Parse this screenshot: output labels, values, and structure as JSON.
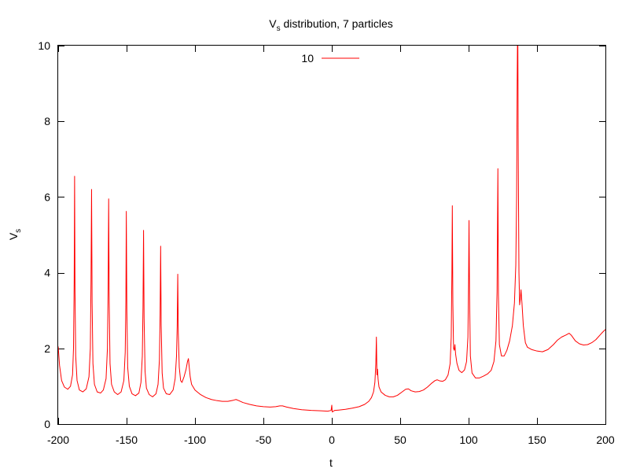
{
  "chart_data": {
    "type": "line",
    "title": {
      "main": "V",
      "sub": "s",
      "rest": " distribution, 7 particles"
    },
    "xlabel": "t",
    "ylabel": {
      "main": "V",
      "sub": "s"
    },
    "xlim": [
      -200,
      200
    ],
    "ylim": [
      0,
      10
    ],
    "xticks": [
      -200,
      -150,
      -100,
      -50,
      0,
      50,
      100,
      150,
      200
    ],
    "xtick_labels": [
      "-200",
      "-150",
      "-100",
      "-50",
      "0",
      "50",
      "100",
      "150",
      "200"
    ],
    "yticks": [
      0,
      2,
      4,
      6,
      8,
      10
    ],
    "ytick_labels": [
      "0",
      "2",
      "4",
      "6",
      "8",
      "10"
    ],
    "grid": false,
    "legend": {
      "placement": "top-center"
    },
    "series": [
      {
        "name": "10",
        "color": "#ff0000",
        "points": [
          [
            -200,
            2.05
          ],
          [
            -199,
            1.55
          ],
          [
            -197.5,
            1.15
          ],
          [
            -195.5,
            0.98
          ],
          [
            -193,
            0.92
          ],
          [
            -191,
            1.0
          ],
          [
            -189.5,
            1.3
          ],
          [
            -188.8,
            2.0
          ],
          [
            -188.3,
            3.8
          ],
          [
            -188.0,
            6.55
          ],
          [
            -187.7,
            3.5
          ],
          [
            -187.2,
            1.8
          ],
          [
            -186.2,
            1.15
          ],
          [
            -184.5,
            0.9
          ],
          [
            -182,
            0.85
          ],
          [
            -179.5,
            0.93
          ],
          [
            -177.5,
            1.25
          ],
          [
            -176.5,
            2.0
          ],
          [
            -176.0,
            3.8
          ],
          [
            -175.6,
            6.2
          ],
          [
            -175.2,
            3.2
          ],
          [
            -174.6,
            1.6
          ],
          [
            -173.5,
            1.05
          ],
          [
            -171.5,
            0.85
          ],
          [
            -169,
            0.82
          ],
          [
            -167,
            0.9
          ],
          [
            -165,
            1.2
          ],
          [
            -164,
            2.0
          ],
          [
            -163.5,
            3.6
          ],
          [
            -163.1,
            5.95
          ],
          [
            -162.7,
            3.2
          ],
          [
            -162.1,
            1.6
          ],
          [
            -161,
            1.05
          ],
          [
            -159,
            0.85
          ],
          [
            -156.5,
            0.78
          ],
          [
            -154,
            0.85
          ],
          [
            -152,
            1.15
          ],
          [
            -151,
            1.9
          ],
          [
            -150.5,
            3.3
          ],
          [
            -150.2,
            5.62
          ],
          [
            -149.8,
            3.0
          ],
          [
            -149.2,
            1.5
          ],
          [
            -148,
            1.0
          ],
          [
            -146,
            0.8
          ],
          [
            -143.5,
            0.75
          ],
          [
            -141,
            0.82
          ],
          [
            -139.5,
            1.1
          ],
          [
            -138.5,
            1.8
          ],
          [
            -138,
            3.1
          ],
          [
            -137.6,
            5.12
          ],
          [
            -137.2,
            2.8
          ],
          [
            -136.5,
            1.4
          ],
          [
            -135.5,
            0.95
          ],
          [
            -133.5,
            0.78
          ],
          [
            -131,
            0.72
          ],
          [
            -128.5,
            0.8
          ],
          [
            -127,
            1.05
          ],
          [
            -126,
            1.7
          ],
          [
            -125.5,
            2.9
          ],
          [
            -125.1,
            4.7
          ],
          [
            -124.7,
            2.6
          ],
          [
            -124,
            1.35
          ],
          [
            -123,
            0.95
          ],
          [
            -121,
            0.8
          ],
          [
            -118.5,
            0.78
          ],
          [
            -116,
            0.9
          ],
          [
            -114.5,
            1.2
          ],
          [
            -113.5,
            1.8
          ],
          [
            -113,
            2.6
          ],
          [
            -112.6,
            3.96
          ],
          [
            -112.2,
            2.4
          ],
          [
            -111.5,
            1.5
          ],
          [
            -110.5,
            1.15
          ],
          [
            -109.5,
            1.1
          ],
          [
            -108,
            1.25
          ],
          [
            -106.5,
            1.45
          ],
          [
            -105.5,
            1.65
          ],
          [
            -104.8,
            1.73
          ],
          [
            -104.2,
            1.5
          ],
          [
            -103.5,
            1.25
          ],
          [
            -102.5,
            1.05
          ],
          [
            -100,
            0.9
          ],
          [
            -96,
            0.78
          ],
          [
            -92,
            0.7
          ],
          [
            -88,
            0.65
          ],
          [
            -84,
            0.62
          ],
          [
            -80,
            0.6
          ],
          [
            -76,
            0.6
          ],
          [
            -72,
            0.63
          ],
          [
            -70,
            0.65
          ],
          [
            -68,
            0.62
          ],
          [
            -65,
            0.57
          ],
          [
            -60,
            0.52
          ],
          [
            -55,
            0.48
          ],
          [
            -50,
            0.46
          ],
          [
            -45,
            0.45
          ],
          [
            -41,
            0.46
          ],
          [
            -38,
            0.48
          ],
          [
            -36,
            0.48
          ],
          [
            -33,
            0.45
          ],
          [
            -28,
            0.41
          ],
          [
            -22,
            0.38
          ],
          [
            -15,
            0.36
          ],
          [
            -8,
            0.35
          ],
          [
            -3,
            0.34
          ],
          [
            -0.5,
            0.36
          ],
          [
            0,
            0.5
          ],
          [
            0.3,
            0.32
          ],
          [
            0.8,
            0.33
          ],
          [
            2,
            0.36
          ],
          [
            5,
            0.37
          ],
          [
            10,
            0.39
          ],
          [
            15,
            0.42
          ],
          [
            20,
            0.46
          ],
          [
            24,
            0.52
          ],
          [
            27,
            0.6
          ],
          [
            29,
            0.7
          ],
          [
            30.5,
            0.85
          ],
          [
            31.5,
            1.1
          ],
          [
            32.2,
            1.6
          ],
          [
            32.6,
            2.3
          ],
          [
            33.0,
            1.3
          ],
          [
            33.4,
            1.45
          ],
          [
            33.8,
            1.2
          ],
          [
            34.5,
            0.98
          ],
          [
            36,
            0.85
          ],
          [
            39,
            0.76
          ],
          [
            42,
            0.72
          ],
          [
            45,
            0.72
          ],
          [
            48,
            0.76
          ],
          [
            51,
            0.84
          ],
          [
            54,
            0.92
          ],
          [
            56,
            0.93
          ],
          [
            58,
            0.88
          ],
          [
            61,
            0.85
          ],
          [
            64,
            0.86
          ],
          [
            67,
            0.9
          ],
          [
            70,
            0.98
          ],
          [
            73,
            1.08
          ],
          [
            75.5,
            1.15
          ],
          [
            77,
            1.17
          ],
          [
            79,
            1.14
          ],
          [
            81,
            1.13
          ],
          [
            83,
            1.17
          ],
          [
            85,
            1.3
          ],
          [
            86.5,
            1.6
          ],
          [
            87.3,
            2.3
          ],
          [
            87.8,
            4.0
          ],
          [
            88.1,
            5.77
          ],
          [
            88.5,
            3.2
          ],
          [
            89,
            2.0
          ],
          [
            89.5,
            1.95
          ],
          [
            90.0,
            2.1
          ],
          [
            90.5,
            1.85
          ],
          [
            91.5,
            1.6
          ],
          [
            93,
            1.42
          ],
          [
            95,
            1.36
          ],
          [
            97,
            1.43
          ],
          [
            98.5,
            1.65
          ],
          [
            99.5,
            2.3
          ],
          [
            100.0,
            3.8
          ],
          [
            100.3,
            5.38
          ],
          [
            100.7,
            3.4
          ],
          [
            101.3,
            1.8
          ],
          [
            102.5,
            1.35
          ],
          [
            105,
            1.22
          ],
          [
            108,
            1.22
          ],
          [
            111,
            1.27
          ],
          [
            114,
            1.33
          ],
          [
            116.5,
            1.42
          ],
          [
            118.5,
            1.65
          ],
          [
            120,
            2.2
          ],
          [
            120.8,
            3.5
          ],
          [
            121.4,
            6.75
          ],
          [
            121.8,
            3.4
          ],
          [
            122.5,
            2.1
          ],
          [
            124,
            1.8
          ],
          [
            126,
            1.8
          ],
          [
            128,
            1.95
          ],
          [
            130,
            2.2
          ],
          [
            132,
            2.6
          ],
          [
            133.5,
            3.2
          ],
          [
            134.5,
            4.2
          ],
          [
            135.1,
            6.0
          ],
          [
            135.5,
            9.0
          ],
          [
            135.7,
            10.0
          ],
          [
            136.0,
            10.0
          ],
          [
            136.3,
            7.0
          ],
          [
            136.8,
            4.0
          ],
          [
            137.3,
            3.15
          ],
          [
            137.8,
            3.3
          ],
          [
            138.3,
            3.55
          ],
          [
            139,
            3.2
          ],
          [
            140,
            2.6
          ],
          [
            141.5,
            2.15
          ],
          [
            143,
            2.03
          ],
          [
            146,
            1.97
          ],
          [
            150,
            1.93
          ],
          [
            154,
            1.91
          ],
          [
            158,
            1.97
          ],
          [
            162,
            2.1
          ],
          [
            165,
            2.22
          ],
          [
            168,
            2.3
          ],
          [
            171,
            2.35
          ],
          [
            173.5,
            2.4
          ],
          [
            175,
            2.35
          ],
          [
            178,
            2.2
          ],
          [
            181,
            2.12
          ],
          [
            184,
            2.09
          ],
          [
            187,
            2.1
          ],
          [
            190,
            2.15
          ],
          [
            193,
            2.23
          ],
          [
            196,
            2.35
          ],
          [
            198,
            2.43
          ],
          [
            200,
            2.5
          ]
        ]
      }
    ]
  }
}
